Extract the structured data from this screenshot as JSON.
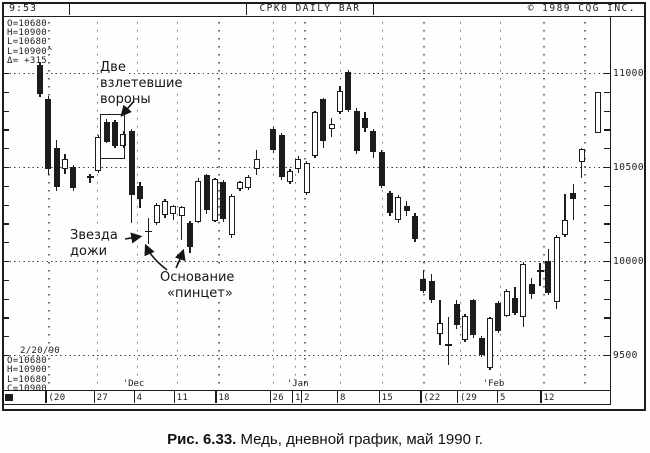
{
  "window": {
    "time": "9:53",
    "title": "CPK0 DAILY BAR",
    "copyright": "©  1989 CQG INC."
  },
  "quote_panel": {
    "open": "O=10680",
    "high": "H=10900",
    "low": "L=10680",
    "last": "L=10900^",
    "net": "Δ= +315"
  },
  "session_panel": {
    "date": "2/20/90",
    "open": "O=10680",
    "high": "H=10900",
    "low": "L=10680",
    "close": "C=10900"
  },
  "annotations": {
    "two_crows": {
      "line1": "Две",
      "line2": "взлетевшие",
      "line3": "вороны"
    },
    "doji_star": {
      "line1": "Звезда",
      "line2": "дожи"
    },
    "tweezers": {
      "line1": "Основание",
      "line2": "«пинцет»"
    }
  },
  "caption": {
    "figure_label": "Рис. 6.33.",
    "text": " Медь, дневной график, май 1990 г."
  },
  "chart_data": {
    "type": "candlestick",
    "title": "CPK0 DAILY BAR — Copper May 1990 contract, daily",
    "ylim": [
      9400,
      11100
    ],
    "grid": "dotted",
    "y_gridlines": [
      11000,
      10500,
      10000,
      9500
    ],
    "y_tick_step_minor": 100,
    "x_axis": {
      "week_labels": [
        {
          "text": "(20",
          "slot": 1.0
        },
        {
          "text": "27",
          "slot": 6.8
        },
        {
          "text": "4",
          "slot": 11.6
        },
        {
          "text": "11",
          "slot": 16.4
        },
        {
          "text": "18",
          "slot": 21.4
        },
        {
          "text": "26",
          "slot": 27.9
        },
        {
          "text": "1",
          "slot": 30.6
        },
        {
          "text": "2",
          "slot": 31.7
        },
        {
          "text": "8",
          "slot": 36.0
        },
        {
          "text": "15",
          "slot": 41.0
        },
        {
          "text": "(22",
          "slot": 46.0
        },
        {
          "text": "(29",
          "slot": 50.4
        },
        {
          "text": "5",
          "slot": 55.2
        },
        {
          "text": "12",
          "slot": 60.4
        }
      ],
      "month_labels": [
        {
          "text": "'Dec",
          "slot": 11.0
        },
        {
          "text": "'Jan",
          "slot": 30.7
        },
        {
          "text": "'Feb",
          "slot": 54.2
        }
      ],
      "extra_grid_slots": [
        65.3
      ]
    },
    "bars_ohlc": [
      [
        11040,
        11060,
        10870,
        10890
      ],
      [
        10860,
        10880,
        10460,
        10490
      ],
      [
        10600,
        10645,
        10370,
        10395
      ],
      [
        10490,
        10570,
        10465,
        10540
      ],
      [
        10500,
        10510,
        10370,
        10390
      ],
      null,
      [
        10440,
        10465,
        10415,
        10448
      ],
      [
        10480,
        10670,
        10470,
        10660
      ],
      [
        10740,
        10755,
        10625,
        10635
      ],
      [
        10737,
        10750,
        10600,
        10610
      ],
      [
        10610,
        10690,
        10600,
        10675
      ],
      [
        10690,
        10700,
        10200,
        10350
      ],
      [
        10400,
        10420,
        10280,
        10330
      ],
      [
        10160,
        10230,
        10090,
        10152
      ],
      [
        10200,
        10310,
        10190,
        10300
      ],
      [
        10245,
        10330,
        10230,
        10320
      ],
      [
        10250,
        10300,
        10220,
        10290
      ],
      [
        10240,
        10290,
        10110,
        10285
      ],
      [
        10200,
        10215,
        10040,
        10075
      ],
      [
        10210,
        10440,
        10200,
        10425
      ],
      [
        10455,
        10465,
        10250,
        10270
      ],
      [
        10215,
        10440,
        10205,
        10435
      ],
      [
        10420,
        10430,
        10210,
        10225
      ],
      [
        10140,
        10355,
        10120,
        10345
      ],
      [
        10385,
        10425,
        10370,
        10418
      ],
      [
        10390,
        10455,
        10375,
        10448
      ],
      [
        10490,
        10590,
        10460,
        10540
      ],
      null,
      [
        10700,
        10712,
        10575,
        10590
      ],
      [
        10670,
        10680,
        10430,
        10445
      ],
      [
        10420,
        10490,
        10410,
        10480
      ],
      [
        10490,
        10560,
        10470,
        10540
      ],
      [
        10360,
        10530,
        10350,
        10520
      ],
      [
        10560,
        10800,
        10550,
        10790
      ],
      [
        10860,
        10868,
        10600,
        10640
      ],
      [
        10700,
        10762,
        10662,
        10730
      ],
      [
        10790,
        10930,
        10780,
        10905
      ],
      [
        11005,
        11015,
        10790,
        10805
      ],
      [
        10800,
        10812,
        10570,
        10585
      ],
      [
        10758,
        10790,
        10688,
        10706
      ],
      [
        10690,
        10700,
        10548,
        10578
      ],
      [
        10580,
        10590,
        10388,
        10400
      ],
      [
        10360,
        10372,
        10238,
        10255
      ],
      [
        10220,
        10350,
        10200,
        10340
      ],
      [
        10292,
        10320,
        10238,
        10268
      ],
      [
        10240,
        10255,
        10102,
        10115
      ],
      [
        9905,
        9950,
        9828,
        9840
      ],
      [
        9895,
        9930,
        9778,
        9790
      ],
      [
        9610,
        9790,
        9552,
        9670
      ],
      [
        9555,
        9700,
        9445,
        9552
      ],
      [
        9770,
        9790,
        9638,
        9660
      ],
      [
        9580,
        9720,
        9568,
        9710
      ],
      [
        9790,
        9800,
        9588,
        9605
      ],
      [
        9590,
        9600,
        9488,
        9500
      ],
      [
        9430,
        9700,
        9418,
        9695
      ],
      [
        9775,
        9788,
        9618,
        9630
      ],
      [
        9710,
        9850,
        9700,
        9840
      ],
      [
        9805,
        9862,
        9712,
        9725
      ],
      [
        9700,
        9995,
        9648,
        9985
      ],
      [
        9880,
        9908,
        9798,
        9825
      ],
      [
        9945,
        9992,
        9868,
        9948
      ],
      [
        10000,
        10065,
        9818,
        9830
      ],
      [
        9780,
        10140,
        9745,
        10130
      ],
      [
        10140,
        10355,
        10128,
        10220
      ],
      [
        10360,
        10412,
        10218,
        10330
      ],
      [
        10525,
        10600,
        10443,
        10595
      ],
      null,
      [
        10680,
        10900,
        10680,
        10900
      ]
    ]
  }
}
